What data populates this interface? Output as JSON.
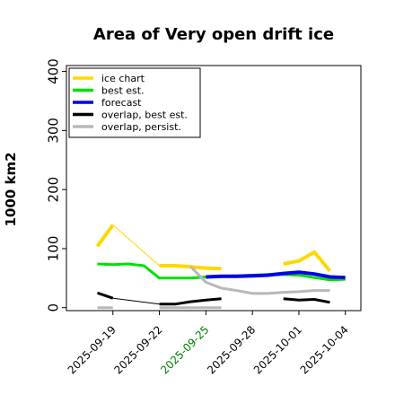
{
  "colors": {
    "ice_chart": "#ffd700",
    "best_est": "#00e000",
    "forecast": "#0000e8",
    "overlap_best": "#000000",
    "overlap_persist": "#b8b8b8",
    "highlight_tick": "#008000",
    "default_tick": "#000000"
  },
  "chart_data": {
    "type": "line",
    "title": "Area of Very open drift ice",
    "ylabel": "1000 km2",
    "xlabel": "",
    "ylim": [
      -5,
      410
    ],
    "xlim": [
      "2025-09-16",
      "2025-10-05"
    ],
    "yticks": [
      "0",
      "100",
      "200",
      "300",
      "400"
    ],
    "xticks": [
      {
        "label": "2025-09-19",
        "date": "2025-09-19",
        "highlight": false
      },
      {
        "label": "2025-09-22",
        "date": "2025-09-22",
        "highlight": false
      },
      {
        "label": "2025-09-25",
        "date": "2025-09-25",
        "highlight": true
      },
      {
        "label": "2025-09-28",
        "date": "2025-09-28",
        "highlight": false
      },
      {
        "label": "2025-10-01",
        "date": "2025-10-01",
        "highlight": false
      },
      {
        "label": "2025-10-04",
        "date": "2025-10-04",
        "highlight": false
      }
    ],
    "legend_position": "top-left",
    "grid": false,
    "series": [
      {
        "name": "ice chart",
        "color_key": "ice_chart",
        "segments": [
          [
            [
              "2025-09-18",
              104
            ],
            [
              "2025-09-19",
              140
            ]
          ],
          [
            [
              "2025-09-22",
              71
            ],
            [
              "2025-09-23",
              71
            ],
            [
              "2025-09-24",
              69
            ],
            [
              "2025-09-25",
              67
            ],
            [
              "2025-09-26",
              66
            ]
          ],
          [
            [
              "2025-09-30",
              74
            ],
            [
              "2025-10-01",
              79
            ],
            [
              "2025-10-02",
              94
            ],
            [
              "2025-10-03",
              62
            ]
          ]
        ],
        "connector": [
          [
            "2025-09-19",
            140
          ],
          [
            "2025-09-22",
            71
          ]
        ]
      },
      {
        "name": "best est.",
        "color_key": "best_est",
        "segments": [
          [
            [
              "2025-09-18",
              74
            ],
            [
              "2025-09-19",
              73
            ],
            [
              "2025-09-20",
              74
            ],
            [
              "2025-09-21",
              71
            ],
            [
              "2025-09-22",
              50
            ],
            [
              "2025-09-23",
              50
            ],
            [
              "2025-09-24",
              50
            ],
            [
              "2025-09-25",
              52
            ],
            [
              "2025-09-26",
              53
            ],
            [
              "2025-09-27",
              54
            ],
            [
              "2025-09-28",
              55
            ],
            [
              "2025-09-29",
              56
            ],
            [
              "2025-09-30",
              56
            ],
            [
              "2025-10-01",
              55
            ],
            [
              "2025-10-02",
              51
            ],
            [
              "2025-10-03",
              47
            ],
            [
              "2025-10-04",
              48
            ]
          ]
        ]
      },
      {
        "name": "forecast",
        "color_key": "forecast",
        "segments": [
          [
            [
              "2025-09-25",
              52
            ],
            [
              "2025-09-26",
              53
            ],
            [
              "2025-09-27",
              53
            ],
            [
              "2025-09-28",
              54
            ],
            [
              "2025-09-29",
              55
            ],
            [
              "2025-09-30",
              58
            ],
            [
              "2025-10-01",
              60
            ],
            [
              "2025-10-02",
              57
            ],
            [
              "2025-10-03",
              52
            ],
            [
              "2025-10-04",
              51
            ]
          ]
        ]
      },
      {
        "name": "overlap, best est.",
        "color_key": "overlap_best",
        "segments": [
          [
            [
              "2025-09-18",
              25
            ],
            [
              "2025-09-19",
              16
            ]
          ],
          [
            [
              "2025-09-22",
              6
            ],
            [
              "2025-09-23",
              6
            ],
            [
              "2025-09-24",
              10
            ],
            [
              "2025-09-25",
              13
            ],
            [
              "2025-09-26",
              15
            ]
          ],
          [
            [
              "2025-09-30",
              15
            ],
            [
              "2025-10-01",
              13
            ],
            [
              "2025-10-02",
              14
            ],
            [
              "2025-10-03",
              9
            ]
          ]
        ],
        "connector": [
          [
            "2025-09-19",
            16
          ],
          [
            "2025-09-22",
            6
          ]
        ]
      },
      {
        "name": "overlap, persist.",
        "color_key": "overlap_persist",
        "segments": [
          [
            [
              "2025-09-18",
              0
            ],
            [
              "2025-09-19",
              0
            ]
          ],
          [
            [
              "2025-09-22",
              0
            ],
            [
              "2025-09-23",
              0
            ],
            [
              "2025-09-24",
              0
            ],
            [
              "2025-09-25",
              0
            ],
            [
              "2025-09-26",
              0
            ]
          ],
          [
            [
              "2025-09-24",
              70
            ],
            [
              "2025-09-25",
              43
            ],
            [
              "2025-09-26",
              33
            ],
            [
              "2025-09-27",
              29
            ],
            [
              "2025-09-28",
              24
            ],
            [
              "2025-09-29",
              24
            ],
            [
              "2025-09-30",
              26
            ],
            [
              "2025-10-01",
              27
            ],
            [
              "2025-10-02",
              29
            ],
            [
              "2025-10-03",
              29
            ]
          ]
        ]
      }
    ]
  }
}
